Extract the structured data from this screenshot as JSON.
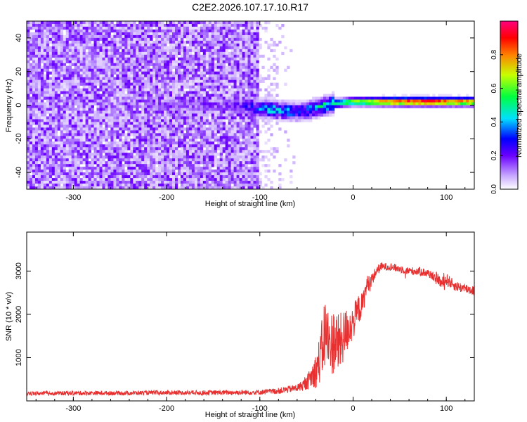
{
  "title": "C2E2.2026.107.17.10.R17",
  "chart_data": [
    {
      "type": "heatmap",
      "xlabel": "Height of straight line (km)",
      "ylabel": "Frequency (Hz)",
      "xlim": [
        -350,
        130
      ],
      "ylim": [
        -50,
        50
      ],
      "xticks": [
        -300,
        -200,
        -100,
        0,
        100
      ],
      "yticks": [
        -40,
        -20,
        0,
        20,
        40
      ],
      "colorbar": {
        "label": "Normalized spectral amplitude",
        "range": [
          0.0,
          1.0
        ],
        "ticks": [
          0.0,
          0.2,
          0.4,
          0.6,
          0.8
        ],
        "colors": [
          "#ffffff",
          "#c8a8ff",
          "#6a00ff",
          "#0000ff",
          "#00e0ff",
          "#00ff40",
          "#c8ff00",
          "#ff8000",
          "#ff0000",
          "#ff0080"
        ]
      },
      "noise_region": {
        "x_start": -350,
        "x_end": -100,
        "fade_end": -60,
        "amplitude": 0.12
      },
      "signal_ridge": [
        {
          "x": -220,
          "freq": 0,
          "amp": 0.15
        },
        {
          "x": -130,
          "freq": 0,
          "amp": 0.2
        },
        {
          "x": -100,
          "freq": -2,
          "amp": 0.35
        },
        {
          "x": -80,
          "freq": -3,
          "amp": 0.45
        },
        {
          "x": -60,
          "freq": -4,
          "amp": 0.35
        },
        {
          "x": -40,
          "freq": -2,
          "amp": 0.4
        },
        {
          "x": -20,
          "freq": 1,
          "amp": 0.55
        },
        {
          "x": 0,
          "freq": 2,
          "amp": 0.6
        },
        {
          "x": 20,
          "freq": 2,
          "amp": 0.7
        },
        {
          "x": 40,
          "freq": 2,
          "amp": 0.85
        },
        {
          "x": 60,
          "freq": 2,
          "amp": 0.9
        },
        {
          "x": 80,
          "freq": 2,
          "amp": 0.9
        },
        {
          "x": 100,
          "freq": 2,
          "amp": 0.85
        },
        {
          "x": 130,
          "freq": 2,
          "amp": 0.8
        }
      ]
    },
    {
      "type": "line",
      "xlabel": "Height of straight line (km)",
      "ylabel": "SNR (10 * v/v)",
      "xlim": [
        -350,
        130
      ],
      "ylim": [
        0,
        3900
      ],
      "xticks": [
        -300,
        -200,
        -100,
        0,
        100
      ],
      "yticks": [
        1000,
        2000,
        3000
      ],
      "color": "#e83030",
      "series": [
        {
          "name": "SNR",
          "x": [
            -350,
            -300,
            -250,
            -200,
            -150,
            -100,
            -80,
            -60,
            -50,
            -40,
            -35,
            -30,
            -25,
            -20,
            -15,
            -10,
            -5,
            0,
            5,
            10,
            15,
            20,
            25,
            30,
            35,
            40,
            50,
            60,
            70,
            80,
            90,
            95,
            100,
            110,
            120,
            130
          ],
          "y": [
            170,
            180,
            180,
            190,
            190,
            200,
            230,
            300,
            400,
            700,
            1000,
            1600,
            1300,
            1400,
            1300,
            1500,
            1700,
            1800,
            2100,
            2200,
            2700,
            2800,
            3000,
            3100,
            3100,
            3100,
            3050,
            3000,
            3000,
            2950,
            2850,
            2700,
            2800,
            2650,
            2600,
            2550
          ],
          "noise": [
            50,
            50,
            50,
            50,
            55,
            60,
            70,
            90,
            150,
            400,
            600,
            900,
            700,
            800,
            700,
            600,
            500,
            400,
            350,
            300,
            200,
            150,
            120,
            100,
            90,
            90,
            90,
            90,
            100,
            100,
            120,
            150,
            150,
            120,
            120,
            120
          ]
        }
      ]
    }
  ]
}
